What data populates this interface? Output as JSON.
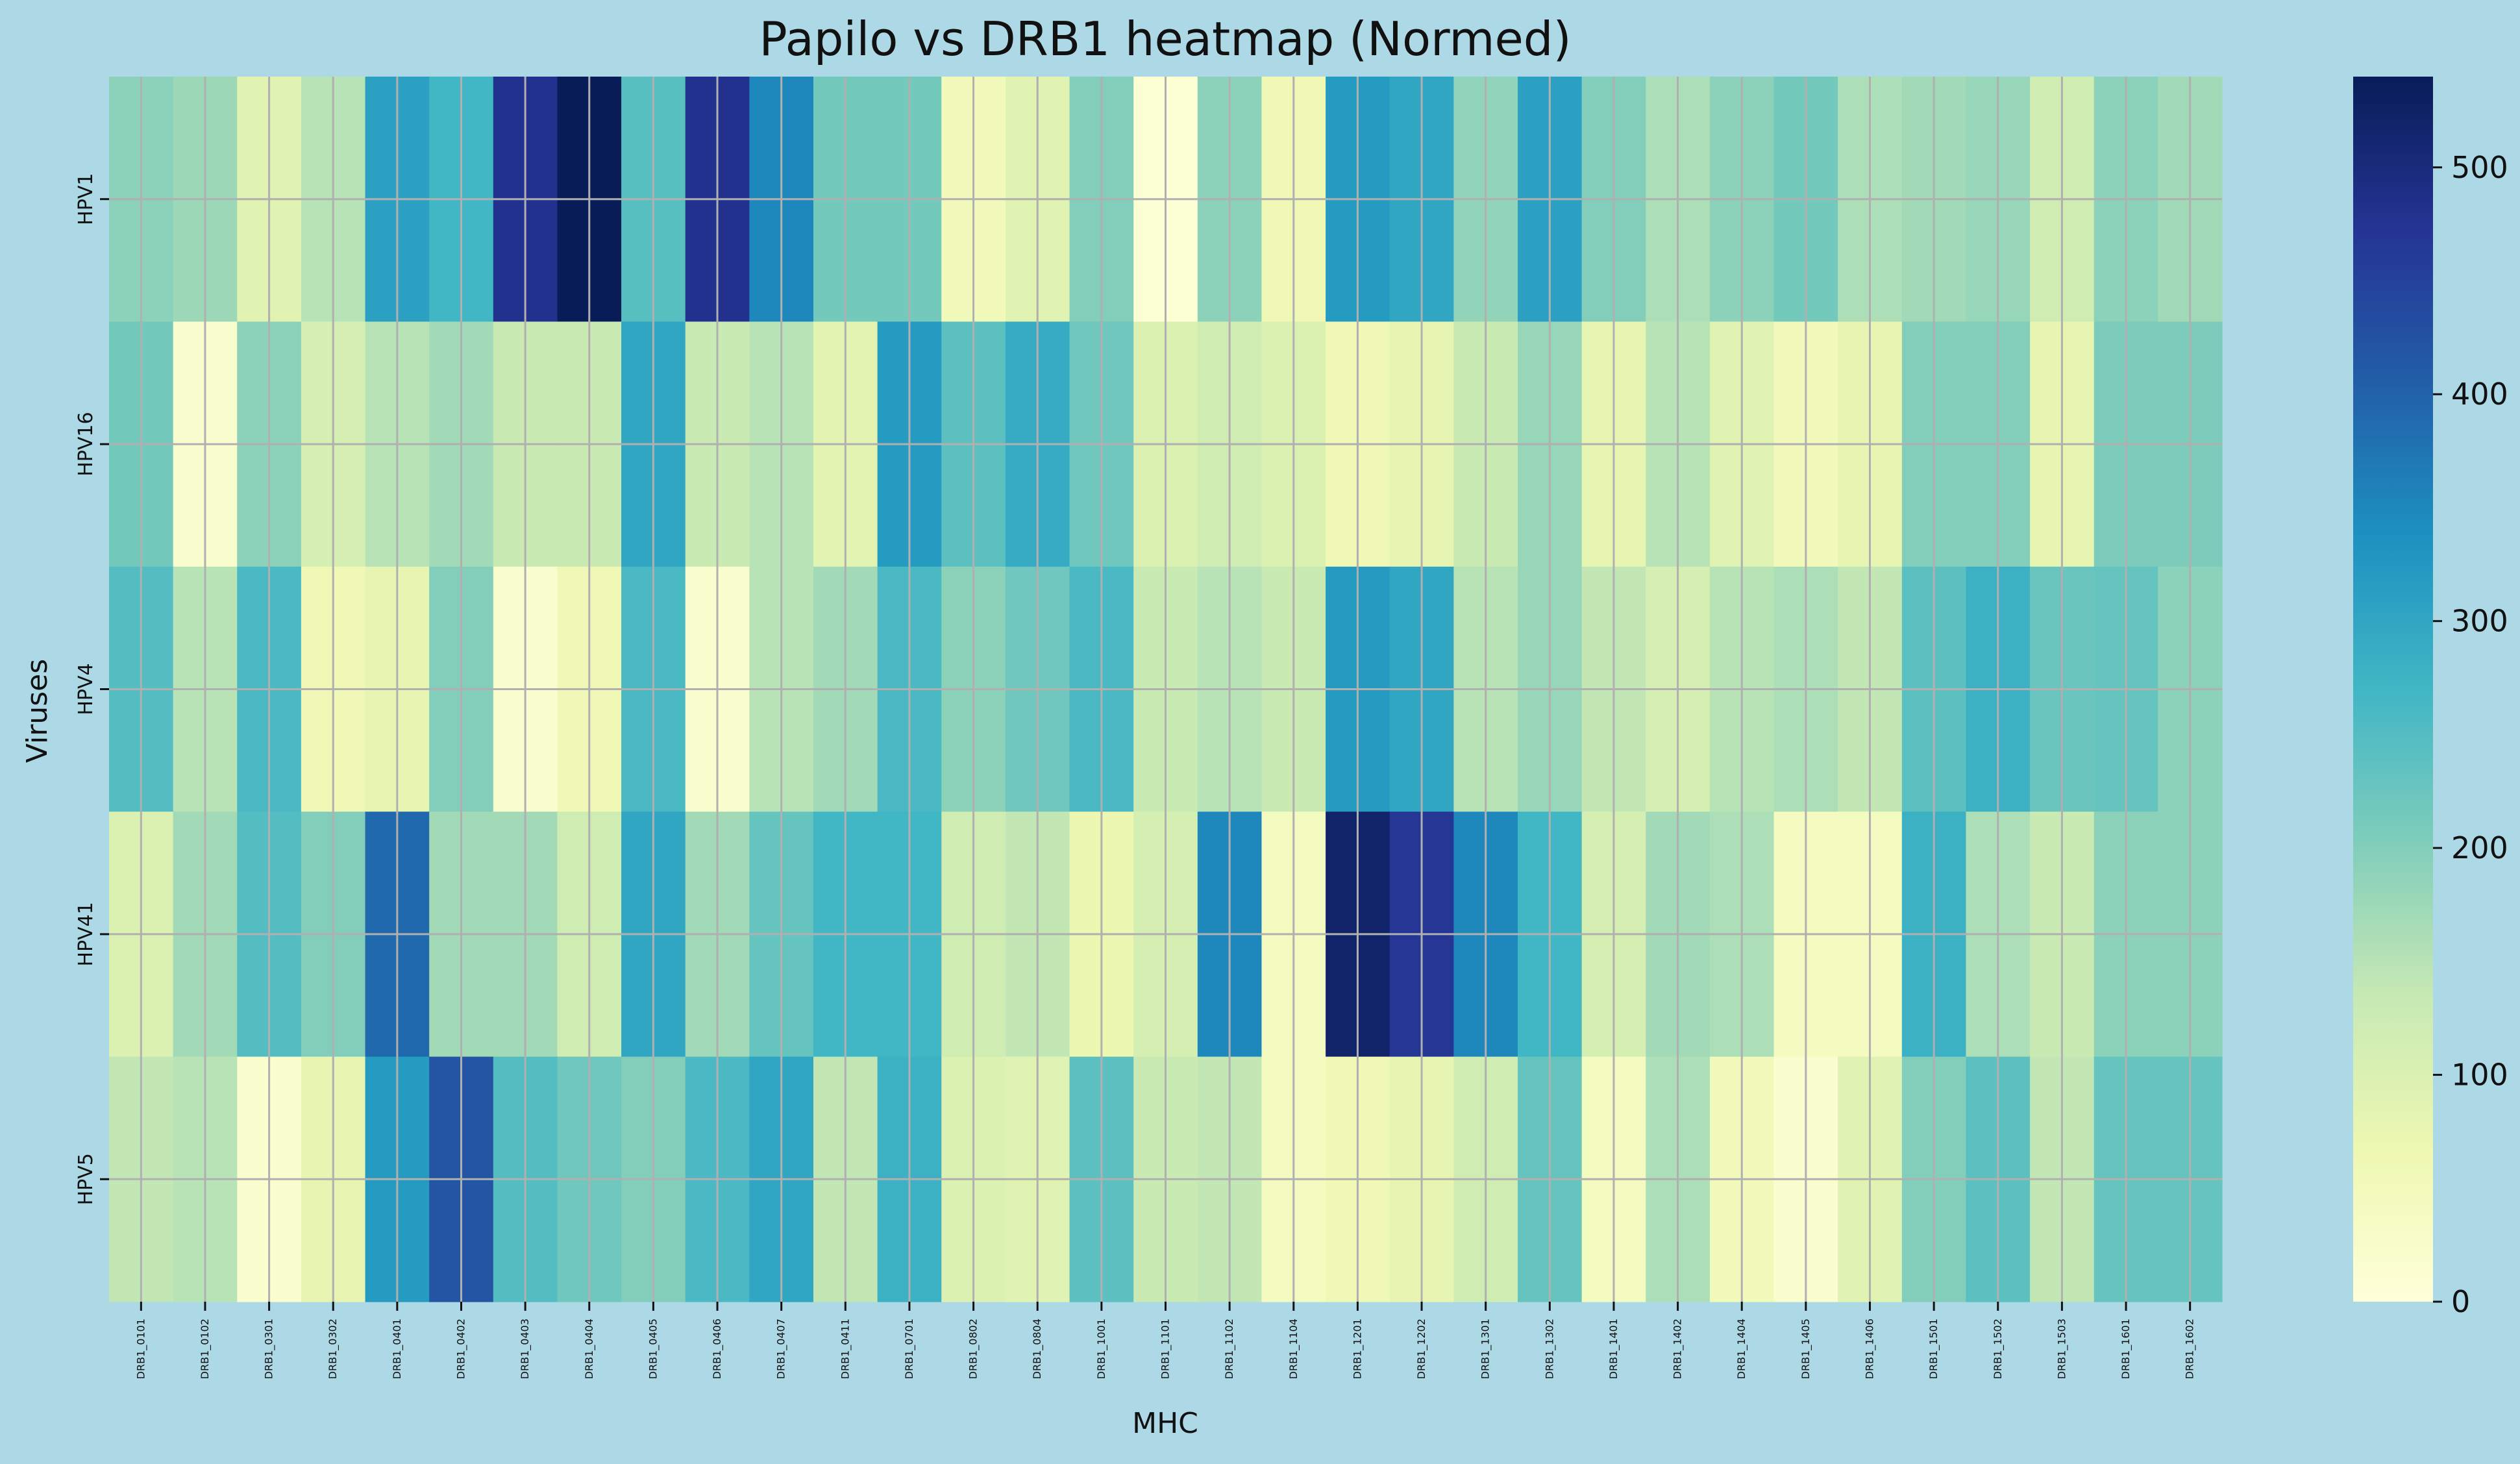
{
  "chart_data": {
    "type": "heatmap",
    "title": "Papilo vs DRB1 heatmap (Normed)",
    "xlabel": "MHC",
    "ylabel": "Viruses",
    "rows": [
      "HPV1",
      "HPV16",
      "HPV4",
      "HPV41",
      "HPV5"
    ],
    "columns": [
      "DRB1_0101",
      "DRB1_0102",
      "DRB1_0301",
      "DRB1_0302",
      "DRB1_0401",
      "DRB1_0402",
      "DRB1_0403",
      "DRB1_0404",
      "DRB1_0405",
      "DRB1_0406",
      "DRB1_0407",
      "DRB1_0411",
      "DRB1_0701",
      "DRB1_0802",
      "DRB1_0804",
      "DRB1_1001",
      "DRB1_1101",
      "DRB1_1102",
      "DRB1_1104",
      "DRB1_1201",
      "DRB1_1202",
      "DRB1_1301",
      "DRB1_1302",
      "DRB1_1401",
      "DRB1_1402",
      "DRB1_1404",
      "DRB1_1405",
      "DRB1_1406",
      "DRB1_1501",
      "DRB1_1502",
      "DRB1_1503",
      "DRB1_1601",
      "DRB1_1602"
    ],
    "values": [
      [
        190,
        175,
        90,
        150,
        310,
        270,
        480,
        540,
        245,
        480,
        350,
        215,
        215,
        50,
        90,
        200,
        10,
        190,
        60,
        320,
        300,
        185,
        310,
        200,
        160,
        190,
        215,
        160,
        170,
        180,
        120,
        190,
        170
      ],
      [
        215,
        20,
        190,
        110,
        150,
        170,
        130,
        130,
        300,
        130,
        150,
        85,
        320,
        240,
        290,
        220,
        100,
        120,
        100,
        60,
        80,
        130,
        180,
        80,
        150,
        90,
        50,
        80,
        200,
        200,
        80,
        205,
        205
      ],
      [
        250,
        150,
        260,
        60,
        80,
        200,
        20,
        60,
        260,
        20,
        150,
        170,
        260,
        190,
        220,
        260,
        130,
        150,
        130,
        320,
        300,
        150,
        180,
        140,
        110,
        150,
        160,
        140,
        240,
        280,
        225,
        230,
        190
      ],
      [
        100,
        170,
        250,
        200,
        390,
        170,
        170,
        120,
        300,
        170,
        230,
        270,
        270,
        120,
        140,
        70,
        110,
        350,
        40,
        520,
        470,
        350,
        270,
        110,
        170,
        160,
        40,
        40,
        280,
        160,
        130,
        190,
        190
      ],
      [
        140,
        150,
        20,
        80,
        320,
        420,
        250,
        220,
        200,
        260,
        300,
        140,
        280,
        100,
        90,
        240,
        130,
        140,
        40,
        60,
        80,
        120,
        230,
        40,
        160,
        50,
        20,
        90,
        200,
        240,
        140,
        230,
        230
      ]
    ],
    "colorbar": {
      "min": 0,
      "max": 540,
      "ticks": [
        0,
        100,
        200,
        300,
        400,
        500
      ],
      "colormap": "YlGnBu"
    },
    "grid": true
  }
}
